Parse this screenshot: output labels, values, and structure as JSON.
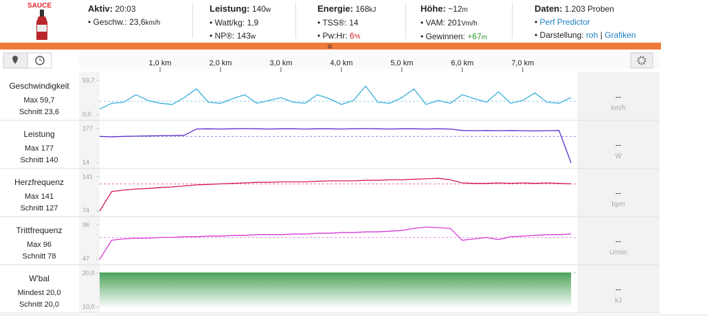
{
  "logo": "SAUCE",
  "stats": [
    {
      "label": "Aktiv:",
      "value": "20:03",
      "rows": [
        {
          "label": "Geschw.:",
          "value": "23,6",
          "unit": "km/h"
        }
      ]
    },
    {
      "label": "Leistung:",
      "value": "140",
      "unit": "w",
      "rows": [
        {
          "label": "Watt/kg:",
          "value": "1,9"
        },
        {
          "label": "NP®:",
          "value": "143",
          "unit": "w"
        }
      ]
    },
    {
      "label": "Energie:",
      "value": "168",
      "unit": "kJ",
      "rows": [
        {
          "label": "TSS®:",
          "value": "14"
        },
        {
          "label": "Pw:Hr:",
          "value": "6",
          "unit": "%",
          "color": "#d42020"
        }
      ]
    },
    {
      "label": "Höhe:",
      "value": "~12",
      "unit": "m",
      "rows": [
        {
          "label": "VAM:",
          "value": "201",
          "unit": "Vm/h"
        },
        {
          "label": "Gewinnen:",
          "value": "+67",
          "unit": "m",
          "color": "#2a9a2a"
        }
      ]
    },
    {
      "label": "Daten:",
      "value": "1.203 Proben",
      "rows": [
        {
          "links": [
            "Perf Predictor"
          ]
        },
        {
          "label": "Darstellung:",
          "links": [
            "roh",
            "Grafiken"
          ],
          "separator": "|"
        }
      ]
    }
  ],
  "distance_km": [
    0,
    0.2,
    0.4,
    0.6,
    0.8,
    1,
    1.2,
    1.4,
    1.6,
    1.8,
    2,
    2.2,
    2.4,
    2.6,
    2.8,
    3,
    3.2,
    3.4,
    3.6,
    3.8,
    4,
    4.2,
    4.4,
    4.6,
    4.8,
    5,
    5.2,
    5.4,
    5.6,
    5.8,
    6,
    6.2,
    6.4,
    6.6,
    6.8,
    7,
    7.2,
    7.4,
    7.6,
    7.8
  ],
  "xlim": [
    0,
    7.9
  ],
  "xticks": [
    {
      "value": 1,
      "label": "1,0 km"
    },
    {
      "value": 2,
      "label": "2,0 km"
    },
    {
      "value": 3,
      "label": "3,0 km"
    },
    {
      "value": 4,
      "label": "4,0 km"
    },
    {
      "value": 5,
      "label": "5,0 km"
    },
    {
      "value": 6,
      "label": "6,0 km"
    },
    {
      "value": 7,
      "label": "7,0 km"
    }
  ],
  "panels": [
    {
      "name": "Geschwindigkeit",
      "stats": [
        "Max 59,7",
        "Schnitt 23,6"
      ],
      "avg": 23.6,
      "ylim": [
        0,
        59.7
      ],
      "yticks": [
        {
          "value": 59.7,
          "label": "59,7"
        },
        {
          "value": 0,
          "label": "0,0"
        }
      ],
      "current": "--",
      "unit": "km/h",
      "color": "#3aaed8",
      "values": [
        10,
        20,
        22,
        35,
        25,
        20,
        18,
        30,
        45,
        22,
        20,
        28,
        35,
        20,
        25,
        30,
        22,
        20,
        35,
        28,
        18,
        25,
        50,
        22,
        20,
        30,
        45,
        18,
        25,
        20,
        35,
        28,
        22,
        40,
        20,
        25,
        38,
        22,
        20,
        30
      ]
    },
    {
      "name": "Leistung",
      "stats": [
        "Max 177",
        "Schnitt 140"
      ],
      "avg": 140,
      "ylim": [
        14,
        177
      ],
      "yticks": [
        177,
        14
      ],
      "current": "--",
      "unit": "W",
      "color": "#5b2cc9",
      "values": [
        140,
        138,
        140,
        141,
        142,
        143,
        144,
        145,
        175,
        176,
        175,
        176,
        177,
        176,
        175,
        176,
        176,
        175,
        176,
        176,
        175,
        176,
        177,
        176,
        175,
        176,
        176,
        175,
        176,
        175,
        168,
        167,
        168,
        167,
        168,
        167,
        166,
        167,
        168,
        14
      ]
    },
    {
      "name": "Herzfrequenz",
      "stats": [
        "Max 141",
        "Schnitt 127"
      ],
      "avg": 127,
      "ylim": [
        74,
        141
      ],
      "yticks": [
        141,
        74
      ],
      "current": "--",
      "unit": "bpm",
      "color": "#d6175a",
      "values": [
        74,
        112,
        115,
        117,
        118,
        120,
        121,
        123,
        125,
        126,
        127,
        128,
        129,
        130,
        130,
        131,
        131,
        131,
        132,
        133,
        133,
        133,
        134,
        134,
        135,
        135,
        136,
        137,
        138,
        135,
        129,
        128,
        128,
        129,
        128,
        129,
        128,
        129,
        128,
        127
      ]
    },
    {
      "name": "Trittfrequenz",
      "stats": [
        "Max 96",
        "Schnitt 78"
      ],
      "avg": 78,
      "ylim": [
        47,
        96
      ],
      "yticks": [
        96,
        47
      ],
      "current": "--",
      "unit": "U/min",
      "color": "#d63ad6",
      "values": [
        47,
        74,
        76,
        77,
        77,
        78,
        78,
        79,
        79,
        80,
        80,
        81,
        81,
        82,
        82,
        82,
        83,
        83,
        84,
        84,
        85,
        85,
        86,
        86,
        87,
        88,
        91,
        93,
        92,
        91,
        74,
        76,
        78,
        75,
        79,
        80,
        81,
        82,
        82,
        83
      ]
    },
    {
      "name": "W'bal",
      "stats": [
        "Mindest 20,0",
        "Schnitt 20,0"
      ],
      "avg": 20,
      "ylim": [
        10,
        20
      ],
      "yticks": [
        {
          "value": 20,
          "label": "20,0"
        },
        {
          "value": 10,
          "label": "10,0"
        }
      ],
      "current": "--",
      "unit": "kJ",
      "color": "#3a9a4a",
      "area": true,
      "values": [
        20,
        20,
        20,
        20,
        20,
        20,
        20,
        20,
        20,
        20,
        20,
        20,
        20,
        20,
        20,
        20,
        20,
        20,
        20,
        20,
        20,
        20,
        20,
        20,
        20,
        20,
        20,
        20,
        20,
        20,
        20,
        20,
        20,
        20,
        20,
        20,
        20,
        20,
        20,
        20
      ]
    }
  ]
}
